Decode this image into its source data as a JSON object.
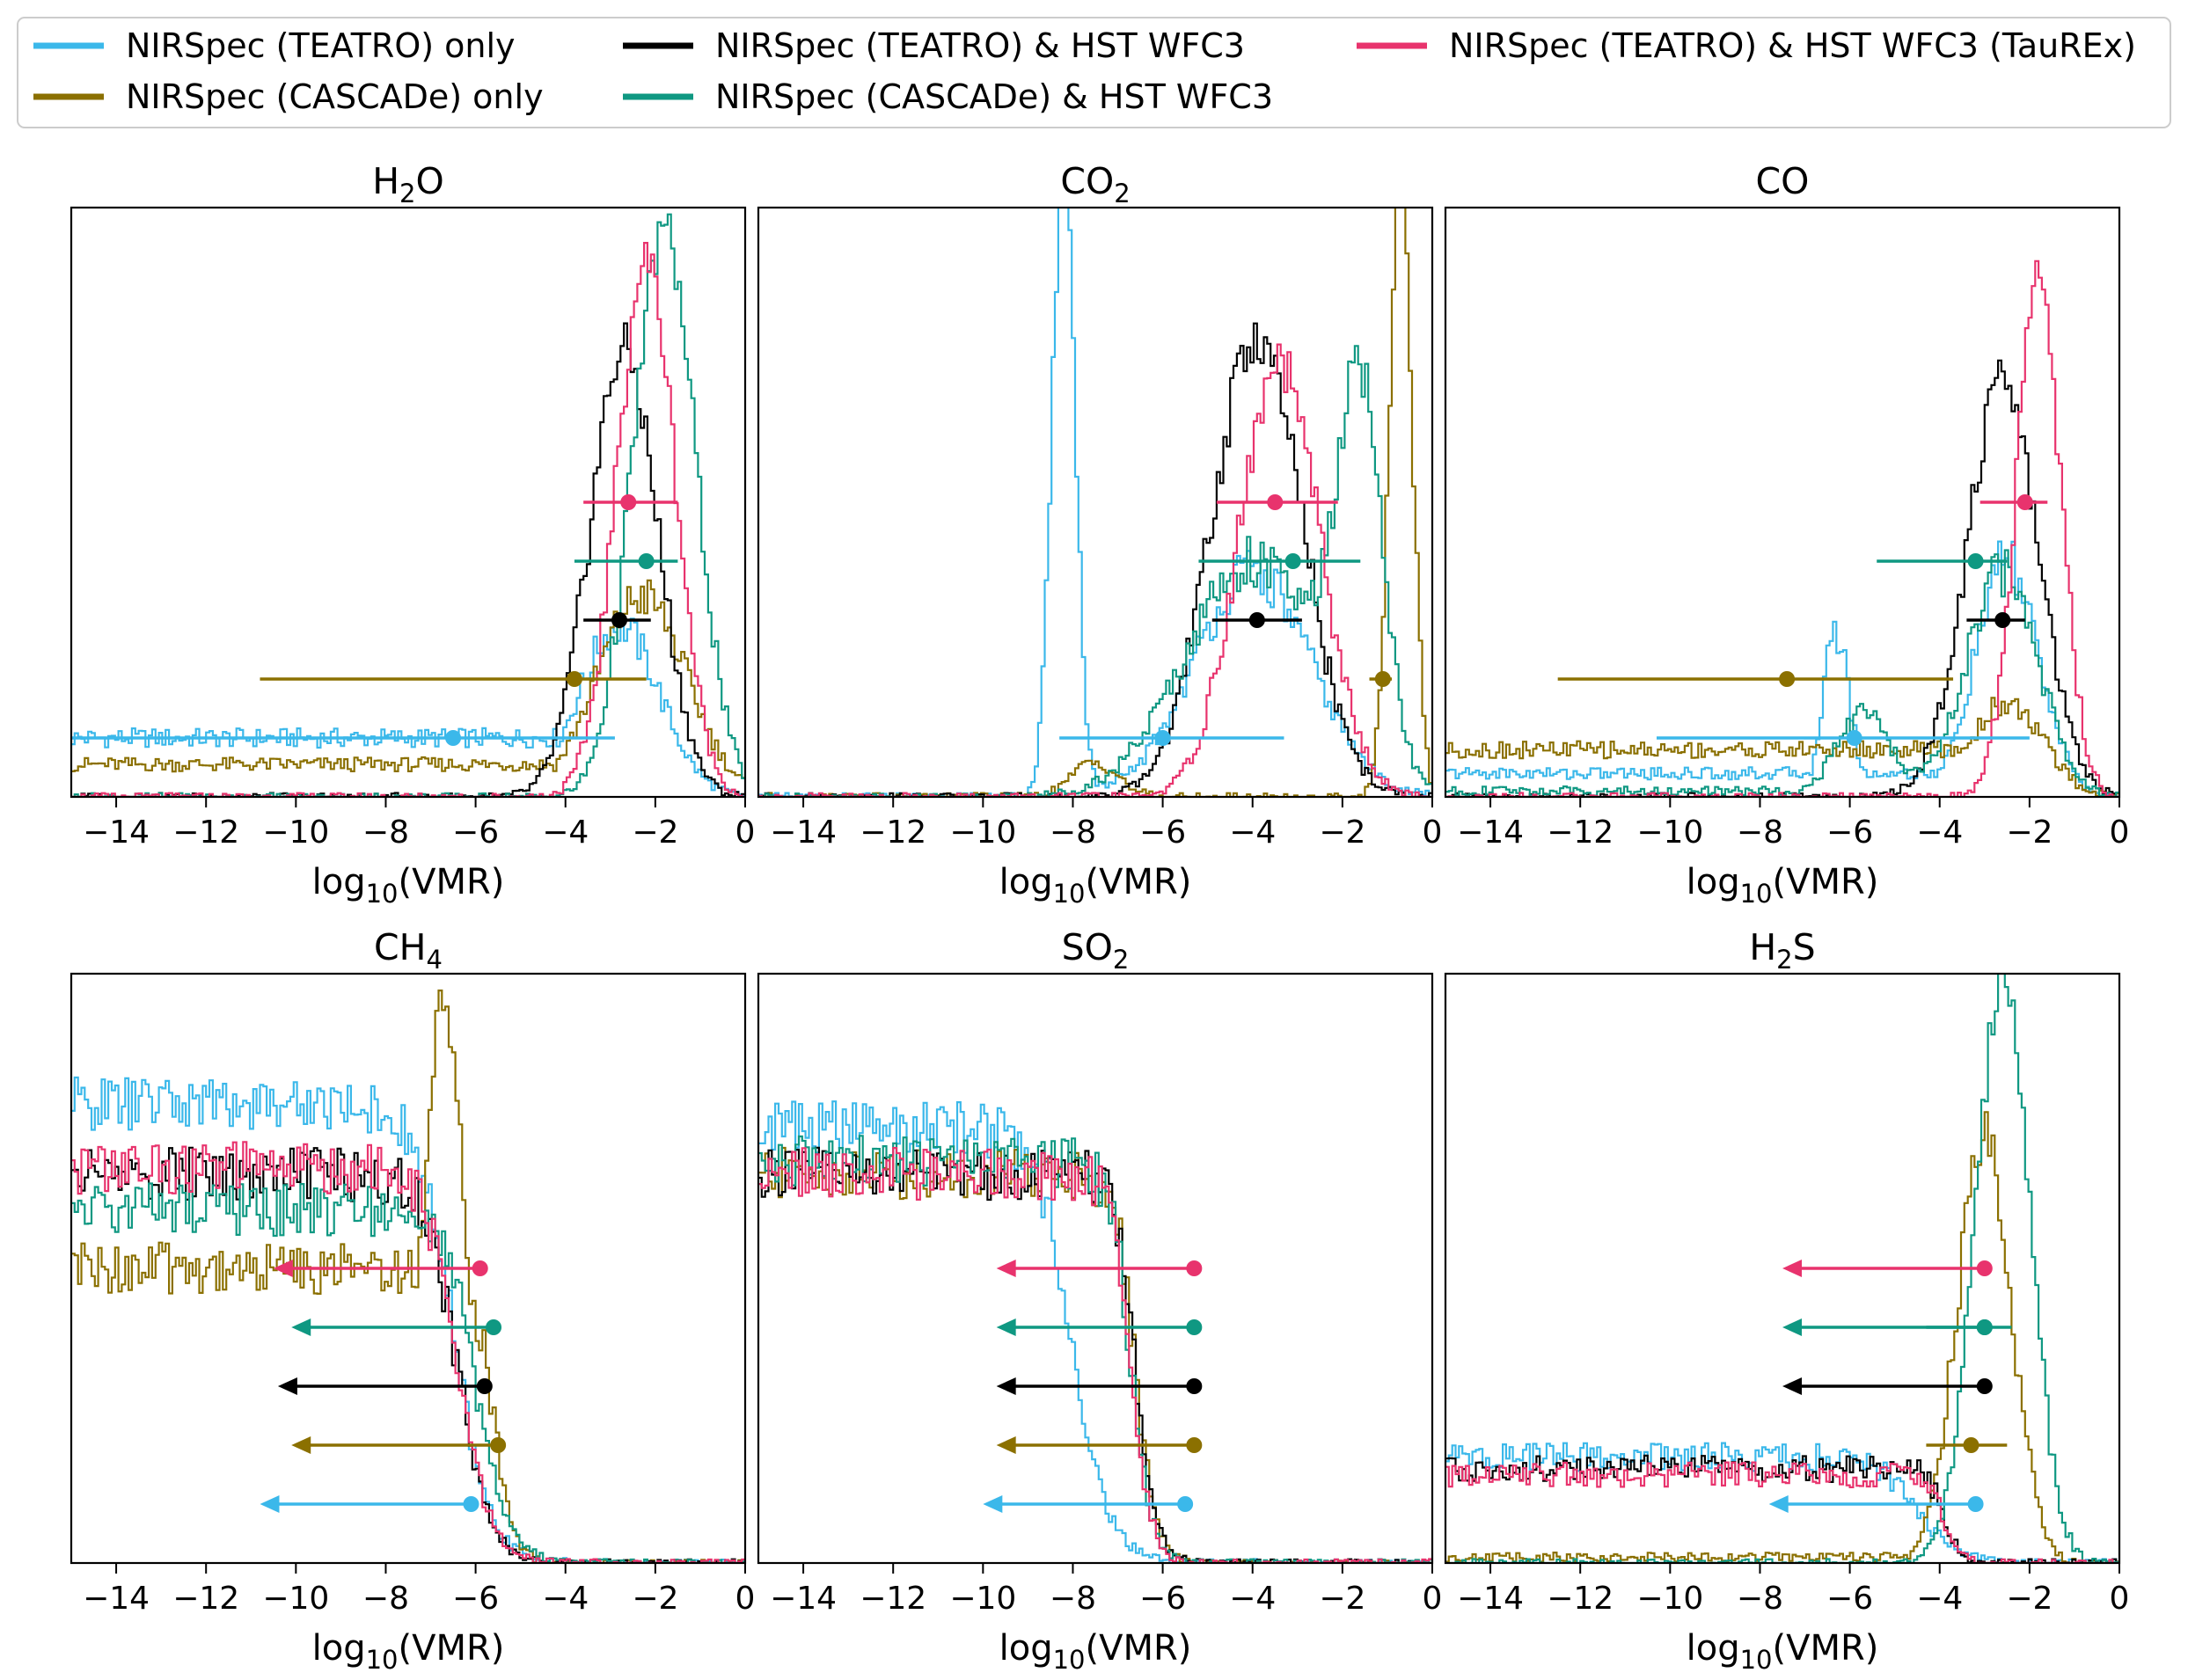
{
  "legend": [
    {
      "label": "NIRSpec (TEATRO) only",
      "color": "#3bb8ea"
    },
    {
      "label": "NIRSpec (CASCADe) only",
      "color": "#8b7000"
    },
    {
      "label": "NIRSpec (TEATRO) & HST WFC3",
      "color": "#000000"
    },
    {
      "label": "NIRSpec (CASCADe) & HST WFC3",
      "color": "#0f9882"
    },
    {
      "label": "NIRSpec (TEATRO) & HST WFC3 (TauREx)",
      "color": "#e8336d"
    }
  ],
  "chart_data": [
    {
      "type": "histogram",
      "title": "H₂O",
      "title_base": "H",
      "title_sub": "2",
      "title_tail": "O",
      "xlabel": "log10(VMR)",
      "xlim": [
        -15,
        0
      ],
      "xticks": [
        -14,
        -12,
        -10,
        -8,
        -6,
        -4,
        -2,
        0
      ],
      "tick_labels": [
        "−14",
        "−12",
        "−10",
        "−8",
        "−6",
        "−4",
        "−2",
        "0"
      ],
      "series": [
        {
          "color": "#3bb8ea",
          "kind": "flat_peak",
          "flat": 0.1,
          "flat_from": -15,
          "peak": -2.8,
          "height": 0.29,
          "width": 0.9
        },
        {
          "color": "#8b7000",
          "kind": "flat_peak",
          "flat": 0.055,
          "flat_from": -15,
          "peak": -2.3,
          "height": 0.34,
          "width": 1.0
        },
        {
          "color": "#000000",
          "kind": "peak",
          "peak": -2.7,
          "height": 0.76,
          "width": 0.75
        },
        {
          "color": "#0f9882",
          "kind": "peak",
          "peak": -1.8,
          "height": 0.96,
          "width": 0.7
        },
        {
          "color": "#e8336d",
          "kind": "peak",
          "peak": -2.2,
          "height": 0.91,
          "width": 0.65
        }
      ],
      "estimates": [
        {
          "color": "#e8336d",
          "value": -2.6,
          "lo": -3.6,
          "hi": -1.5
        },
        {
          "color": "#0f9882",
          "value": -2.2,
          "lo": -3.8,
          "hi": -1.5
        },
        {
          "color": "#000000",
          "value": -2.8,
          "lo": -3.6,
          "hi": -2.1
        },
        {
          "color": "#8b7000",
          "value": -3.8,
          "lo": -10.8,
          "hi": -2.2
        },
        {
          "color": "#3bb8ea",
          "value": -6.5,
          "lo": -15,
          "hi": -2.9
        }
      ],
      "upper_limits": []
    },
    {
      "type": "histogram",
      "title": "CO₂",
      "title_base": "CO",
      "title_sub": "2",
      "title_tail": "",
      "xlabel": "log10(VMR)",
      "xlim": [
        -15,
        0
      ],
      "xticks": [
        -14,
        -12,
        -10,
        -8,
        -6,
        -4,
        -2,
        0
      ],
      "tick_labels": [
        "−14",
        "−12",
        "−10",
        "−8",
        "−6",
        "−4",
        "−2",
        "0"
      ],
      "series": [
        {
          "color": "#3bb8ea",
          "kind": "bimodal",
          "peak": -8.2,
          "height": 1.1,
          "width": 0.25,
          "peak2": -4.0,
          "height2": 0.38,
          "width2": 1.3
        },
        {
          "color": "#8b7000",
          "kind": "bimodal",
          "peak": -0.7,
          "height": 1.1,
          "width": 0.25,
          "peak2": -7.5,
          "height2": 0.06,
          "width2": 0.5
        },
        {
          "color": "#000000",
          "kind": "peak",
          "peak": -3.9,
          "height": 0.78,
          "width": 1.0
        },
        {
          "color": "#0f9882",
          "kind": "bimodal",
          "peak": -1.6,
          "height": 0.62,
          "width": 0.5,
          "peak2": -4.0,
          "height2": 0.4,
          "width2": 1.5
        },
        {
          "color": "#e8336d",
          "kind": "peak",
          "peak": -3.4,
          "height": 0.73,
          "width": 0.9
        }
      ],
      "estimates": [
        {
          "color": "#e8336d",
          "value": -3.5,
          "lo": -4.8,
          "hi": -2.1
        },
        {
          "color": "#0f9882",
          "value": -3.1,
          "lo": -5.2,
          "hi": -1.6
        },
        {
          "color": "#000000",
          "value": -3.9,
          "lo": -4.9,
          "hi": -2.9
        },
        {
          "color": "#8b7000",
          "value": -1.1,
          "lo": -1.4,
          "hi": -0.9
        },
        {
          "color": "#3bb8ea",
          "value": -6.0,
          "lo": -8.3,
          "hi": -3.3
        }
      ],
      "upper_limits": []
    },
    {
      "type": "histogram",
      "title": "CO",
      "title_base": "CO",
      "title_sub": "",
      "title_tail": "",
      "xlabel": "log10(VMR)",
      "xlim": [
        -15,
        0
      ],
      "xticks": [
        -14,
        -12,
        -10,
        -8,
        -6,
        -4,
        -2,
        0
      ],
      "tick_labels": [
        "−14",
        "−12",
        "−10",
        "−8",
        "−6",
        "−4",
        "−2",
        "0"
      ],
      "series": [
        {
          "color": "#3bb8ea",
          "kind": "flat_bimodal",
          "flat": 0.04,
          "flat_from": -15,
          "peak": -6.3,
          "height": 0.28,
          "width": 0.3,
          "peak2": -2.5,
          "height2": 0.4,
          "width2": 0.7
        },
        {
          "color": "#8b7000",
          "kind": "flat_peak",
          "flat": 0.08,
          "flat_from": -15,
          "peak": -2.5,
          "height": 0.16,
          "width": 0.8
        },
        {
          "color": "#000000",
          "kind": "peak",
          "peak": -2.6,
          "height": 0.7,
          "width": 0.8
        },
        {
          "color": "#0f9882",
          "kind": "flat_bimodal",
          "flat": 0.01,
          "flat_from": -15,
          "peak": -5.7,
          "height": 0.14,
          "width": 0.6,
          "peak2": -2.6,
          "height2": 0.38,
          "width2": 0.8
        },
        {
          "color": "#e8336d",
          "kind": "peak",
          "peak": -1.8,
          "height": 0.88,
          "width": 0.5
        }
      ],
      "estimates": [
        {
          "color": "#e8336d",
          "value": -2.1,
          "lo": -3.1,
          "hi": -1.6
        },
        {
          "color": "#0f9882",
          "value": -3.2,
          "lo": -5.4,
          "hi": -2.5
        },
        {
          "color": "#000000",
          "value": -2.6,
          "lo": -3.4,
          "hi": -2.1
        },
        {
          "color": "#8b7000",
          "value": -7.4,
          "lo": -12.5,
          "hi": -3.7
        },
        {
          "color": "#3bb8ea",
          "value": -5.9,
          "lo": -10.3,
          "hi": -2.0
        }
      ],
      "upper_limits": []
    },
    {
      "type": "histogram",
      "title": "CH₄",
      "title_base": "CH",
      "title_sub": "4",
      "title_tail": "",
      "xlabel": "log10(VMR)",
      "xlim": [
        -15,
        0
      ],
      "xticks": [
        -14,
        -12,
        -10,
        -8,
        -6,
        -4,
        -2,
        0
      ],
      "tick_labels": [
        "−14",
        "−12",
        "−10",
        "−8",
        "−6",
        "−4",
        "−2",
        "0"
      ],
      "series": [
        {
          "color": "#3bb8ea",
          "kind": "plateau",
          "level": 0.78,
          "knee": -9.0,
          "cut": -6.5,
          "cut_width": 0.9
        },
        {
          "color": "#8b7000",
          "kind": "plateau_peak",
          "level": 0.5,
          "knee": -8.5,
          "cut": -5.6,
          "cut_width": 0.5,
          "peak": -6.7,
          "height": 0.95,
          "width": 0.5
        },
        {
          "color": "#000000",
          "kind": "plateau",
          "level": 0.66,
          "knee": -8.5,
          "cut": -6.4,
          "cut_width": 0.8
        },
        {
          "color": "#0f9882",
          "kind": "plateau",
          "level": 0.6,
          "knee": -8.0,
          "cut": -6.0,
          "cut_width": 0.8
        },
        {
          "color": "#e8336d",
          "kind": "plateau",
          "level": 0.67,
          "knee": -8.5,
          "cut": -6.4,
          "cut_width": 0.8
        }
      ],
      "estimates": [],
      "upper_limits": [
        {
          "color": "#e8336d",
          "value": -5.9,
          "to": -10.5
        },
        {
          "color": "#0f9882",
          "value": -5.6,
          "to": -10.1
        },
        {
          "color": "#000000",
          "value": -5.8,
          "to": -10.4
        },
        {
          "color": "#8b7000",
          "value": -5.5,
          "to": -10.1
        },
        {
          "color": "#3bb8ea",
          "value": -6.1,
          "to": -10.8
        }
      ]
    },
    {
      "type": "histogram",
      "title": "SO₂",
      "title_base": "SO",
      "title_sub": "2",
      "title_tail": "",
      "xlabel": "log10(VMR)",
      "xlim": [
        -15,
        0
      ],
      "xticks": [
        -14,
        -12,
        -10,
        -8,
        -6,
        -4,
        -2,
        0
      ],
      "tick_labels": [
        "−14",
        "−12",
        "−10",
        "−8",
        "−6",
        "−4",
        "−2",
        "0"
      ],
      "series": [
        {
          "color": "#3bb8ea",
          "kind": "plateau",
          "level": 0.74,
          "knee": -10.5,
          "cut": -8.0,
          "cut_width": 0.9
        },
        {
          "color": "#8b7000",
          "kind": "plateau",
          "level": 0.66,
          "knee": -10.0,
          "cut": -6.6,
          "cut_width": 0.5
        },
        {
          "color": "#000000",
          "kind": "plateau",
          "level": 0.66,
          "knee": -10.0,
          "cut": -6.6,
          "cut_width": 0.5
        },
        {
          "color": "#0f9882",
          "kind": "plateau",
          "level": 0.68,
          "knee": -10.0,
          "cut": -6.7,
          "cut_width": 0.5
        },
        {
          "color": "#e8336d",
          "kind": "plateau",
          "level": 0.66,
          "knee": -10.0,
          "cut": -6.7,
          "cut_width": 0.5
        }
      ],
      "estimates": [],
      "upper_limits": [
        {
          "color": "#e8336d",
          "value": -5.3,
          "to": -9.7
        },
        {
          "color": "#0f9882",
          "value": -5.3,
          "to": -9.7
        },
        {
          "color": "#000000",
          "value": -5.3,
          "to": -9.7
        },
        {
          "color": "#8b7000",
          "value": -5.3,
          "to": -9.7
        },
        {
          "color": "#3bb8ea",
          "value": -5.5,
          "to": -10.0
        }
      ]
    },
    {
      "type": "histogram",
      "title": "H₂S",
      "title_base": "H",
      "title_sub": "2",
      "title_tail": "S",
      "xlabel": "log10(VMR)",
      "xlim": [
        -15,
        0
      ],
      "xticks": [
        -14,
        -12,
        -10,
        -8,
        -6,
        -4,
        -2,
        0
      ],
      "tick_labels": [
        "−14",
        "−12",
        "−10",
        "−8",
        "−6",
        "−4",
        "−2",
        "0"
      ],
      "series": [
        {
          "color": "#3bb8ea",
          "kind": "plateau",
          "level": 0.18,
          "knee": -6.5,
          "cut": -4.5,
          "cut_width": 1.0
        },
        {
          "color": "#8b7000",
          "kind": "flat_peak",
          "flat": 0.01,
          "flat_from": -15,
          "peak": -3.0,
          "height": 0.73,
          "width": 0.6
        },
        {
          "color": "#000000",
          "kind": "plateau",
          "level": 0.16,
          "knee": -5.5,
          "cut": -3.9,
          "cut_width": 0.4
        },
        {
          "color": "#0f9882",
          "kind": "peak",
          "peak": -2.6,
          "height": 0.99,
          "width": 0.6
        },
        {
          "color": "#e8336d",
          "kind": "plateau",
          "level": 0.15,
          "knee": -5.5,
          "cut": -3.9,
          "cut_width": 0.4
        }
      ],
      "estimates": [
        {
          "color": "#8b7000",
          "value": -3.3,
          "lo": -4.3,
          "hi": -2.5
        },
        {
          "color": "#0f9882",
          "value": -3.0,
          "lo": -4.3,
          "hi": -2.4
        }
      ],
      "upper_limits": [
        {
          "color": "#e8336d",
          "value": -3.0,
          "to": -7.5
        },
        {
          "color": "#0f9882",
          "value": -3.0,
          "to": -7.5
        },
        {
          "color": "#000000",
          "value": -3.0,
          "to": -7.5
        },
        {
          "color": "#3bb8ea",
          "value": -3.2,
          "to": -7.8
        }
      ]
    }
  ]
}
